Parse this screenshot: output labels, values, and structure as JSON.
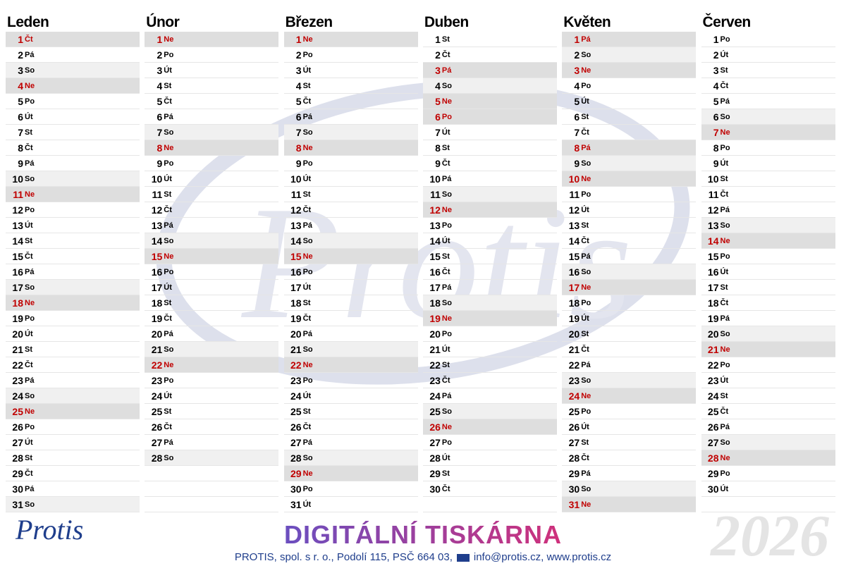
{
  "year": "2026",
  "logo": "Protis",
  "footer": {
    "brand": "DIGITÁLNÍ TISKÁRNA",
    "address": "PROTIS, spol. s r. o., Podolí 115, PSČ 664 03,",
    "contact": "info@protis.cz, www.protis.cz"
  },
  "months": [
    {
      "name": "Leden",
      "holidays": [
        0
      ],
      "days": [
        [
          "1",
          "Čt"
        ],
        [
          "2",
          "Pá"
        ],
        [
          "3",
          "So"
        ],
        [
          "4",
          "Ne"
        ],
        [
          "5",
          "Po"
        ],
        [
          "6",
          "Út"
        ],
        [
          "7",
          "St"
        ],
        [
          "8",
          "Čt"
        ],
        [
          "9",
          "Pá"
        ],
        [
          "10",
          "So"
        ],
        [
          "11",
          "Ne"
        ],
        [
          "12",
          "Po"
        ],
        [
          "13",
          "Út"
        ],
        [
          "14",
          "St"
        ],
        [
          "15",
          "Čt"
        ],
        [
          "16",
          "Pá"
        ],
        [
          "17",
          "So"
        ],
        [
          "18",
          "Ne"
        ],
        [
          "19",
          "Po"
        ],
        [
          "20",
          "Út"
        ],
        [
          "21",
          "St"
        ],
        [
          "22",
          "Čt"
        ],
        [
          "23",
          "Pá"
        ],
        [
          "24",
          "So"
        ],
        [
          "25",
          "Ne"
        ],
        [
          "26",
          "Po"
        ],
        [
          "27",
          "Út"
        ],
        [
          "28",
          "St"
        ],
        [
          "29",
          "Čt"
        ],
        [
          "30",
          "Pá"
        ],
        [
          "31",
          "So"
        ]
      ]
    },
    {
      "name": "Únor",
      "holidays": [],
      "days": [
        [
          "1",
          "Ne"
        ],
        [
          "2",
          "Po"
        ],
        [
          "3",
          "Út"
        ],
        [
          "4",
          "St"
        ],
        [
          "5",
          "Čt"
        ],
        [
          "6",
          "Pá"
        ],
        [
          "7",
          "So"
        ],
        [
          "8",
          "Ne"
        ],
        [
          "9",
          "Po"
        ],
        [
          "10",
          "Út"
        ],
        [
          "11",
          "St"
        ],
        [
          "12",
          "Čt"
        ],
        [
          "13",
          "Pá"
        ],
        [
          "14",
          "So"
        ],
        [
          "15",
          "Ne"
        ],
        [
          "16",
          "Po"
        ],
        [
          "17",
          "Út"
        ],
        [
          "18",
          "St"
        ],
        [
          "19",
          "Čt"
        ],
        [
          "20",
          "Pá"
        ],
        [
          "21",
          "So"
        ],
        [
          "22",
          "Ne"
        ],
        [
          "23",
          "Po"
        ],
        [
          "24",
          "Út"
        ],
        [
          "25",
          "St"
        ],
        [
          "26",
          "Čt"
        ],
        [
          "27",
          "Pá"
        ],
        [
          "28",
          "So"
        ]
      ]
    },
    {
      "name": "Březen",
      "holidays": [],
      "days": [
        [
          "1",
          "Ne"
        ],
        [
          "2",
          "Po"
        ],
        [
          "3",
          "Út"
        ],
        [
          "4",
          "St"
        ],
        [
          "5",
          "Čt"
        ],
        [
          "6",
          "Pá"
        ],
        [
          "7",
          "So"
        ],
        [
          "8",
          "Ne"
        ],
        [
          "9",
          "Po"
        ],
        [
          "10",
          "Út"
        ],
        [
          "11",
          "St"
        ],
        [
          "12",
          "Čt"
        ],
        [
          "13",
          "Pá"
        ],
        [
          "14",
          "So"
        ],
        [
          "15",
          "Ne"
        ],
        [
          "16",
          "Po"
        ],
        [
          "17",
          "Út"
        ],
        [
          "18",
          "St"
        ],
        [
          "19",
          "Čt"
        ],
        [
          "20",
          "Pá"
        ],
        [
          "21",
          "So"
        ],
        [
          "22",
          "Ne"
        ],
        [
          "23",
          "Po"
        ],
        [
          "24",
          "Út"
        ],
        [
          "25",
          "St"
        ],
        [
          "26",
          "Čt"
        ],
        [
          "27",
          "Pá"
        ],
        [
          "28",
          "So"
        ],
        [
          "29",
          "Ne"
        ],
        [
          "30",
          "Po"
        ],
        [
          "31",
          "Út"
        ]
      ]
    },
    {
      "name": "Duben",
      "holidays": [
        2,
        5
      ],
      "days": [
        [
          "1",
          "St"
        ],
        [
          "2",
          "Čt"
        ],
        [
          "3",
          "Pá"
        ],
        [
          "4",
          "So"
        ],
        [
          "5",
          "Ne"
        ],
        [
          "6",
          "Po"
        ],
        [
          "7",
          "Út"
        ],
        [
          "8",
          "St"
        ],
        [
          "9",
          "Čt"
        ],
        [
          "10",
          "Pá"
        ],
        [
          "11",
          "So"
        ],
        [
          "12",
          "Ne"
        ],
        [
          "13",
          "Po"
        ],
        [
          "14",
          "Út"
        ],
        [
          "15",
          "St"
        ],
        [
          "16",
          "Čt"
        ],
        [
          "17",
          "Pá"
        ],
        [
          "18",
          "So"
        ],
        [
          "19",
          "Ne"
        ],
        [
          "20",
          "Po"
        ],
        [
          "21",
          "Út"
        ],
        [
          "22",
          "St"
        ],
        [
          "23",
          "Čt"
        ],
        [
          "24",
          "Pá"
        ],
        [
          "25",
          "So"
        ],
        [
          "26",
          "Ne"
        ],
        [
          "27",
          "Po"
        ],
        [
          "28",
          "Út"
        ],
        [
          "29",
          "St"
        ],
        [
          "30",
          "Čt"
        ]
      ]
    },
    {
      "name": "Květen",
      "holidays": [
        0,
        7
      ],
      "days": [
        [
          "1",
          "Pá"
        ],
        [
          "2",
          "So"
        ],
        [
          "3",
          "Ne"
        ],
        [
          "4",
          "Po"
        ],
        [
          "5",
          "Út"
        ],
        [
          "6",
          "St"
        ],
        [
          "7",
          "Čt"
        ],
        [
          "8",
          "Pá"
        ],
        [
          "9",
          "So"
        ],
        [
          "10",
          "Ne"
        ],
        [
          "11",
          "Po"
        ],
        [
          "12",
          "Út"
        ],
        [
          "13",
          "St"
        ],
        [
          "14",
          "Čt"
        ],
        [
          "15",
          "Pá"
        ],
        [
          "16",
          "So"
        ],
        [
          "17",
          "Ne"
        ],
        [
          "18",
          "Po"
        ],
        [
          "19",
          "Út"
        ],
        [
          "20",
          "St"
        ],
        [
          "21",
          "Čt"
        ],
        [
          "22",
          "Pá"
        ],
        [
          "23",
          "So"
        ],
        [
          "24",
          "Ne"
        ],
        [
          "25",
          "Po"
        ],
        [
          "26",
          "Út"
        ],
        [
          "27",
          "St"
        ],
        [
          "28",
          "Čt"
        ],
        [
          "29",
          "Pá"
        ],
        [
          "30",
          "So"
        ],
        [
          "31",
          "Ne"
        ]
      ]
    },
    {
      "name": "Červen",
      "holidays": [],
      "days": [
        [
          "1",
          "Po"
        ],
        [
          "2",
          "Út"
        ],
        [
          "3",
          "St"
        ],
        [
          "4",
          "Čt"
        ],
        [
          "5",
          "Pá"
        ],
        [
          "6",
          "So"
        ],
        [
          "7",
          "Ne"
        ],
        [
          "8",
          "Po"
        ],
        [
          "9",
          "Út"
        ],
        [
          "10",
          "St"
        ],
        [
          "11",
          "Čt"
        ],
        [
          "12",
          "Pá"
        ],
        [
          "13",
          "So"
        ],
        [
          "14",
          "Ne"
        ],
        [
          "15",
          "Po"
        ],
        [
          "16",
          "Út"
        ],
        [
          "17",
          "St"
        ],
        [
          "18",
          "Čt"
        ],
        [
          "19",
          "Pá"
        ],
        [
          "20",
          "So"
        ],
        [
          "21",
          "Ne"
        ],
        [
          "22",
          "Po"
        ],
        [
          "23",
          "Út"
        ],
        [
          "24",
          "St"
        ],
        [
          "25",
          "Čt"
        ],
        [
          "26",
          "Pá"
        ],
        [
          "27",
          "So"
        ],
        [
          "28",
          "Ne"
        ],
        [
          "29",
          "Po"
        ],
        [
          "30",
          "Út"
        ]
      ]
    }
  ]
}
